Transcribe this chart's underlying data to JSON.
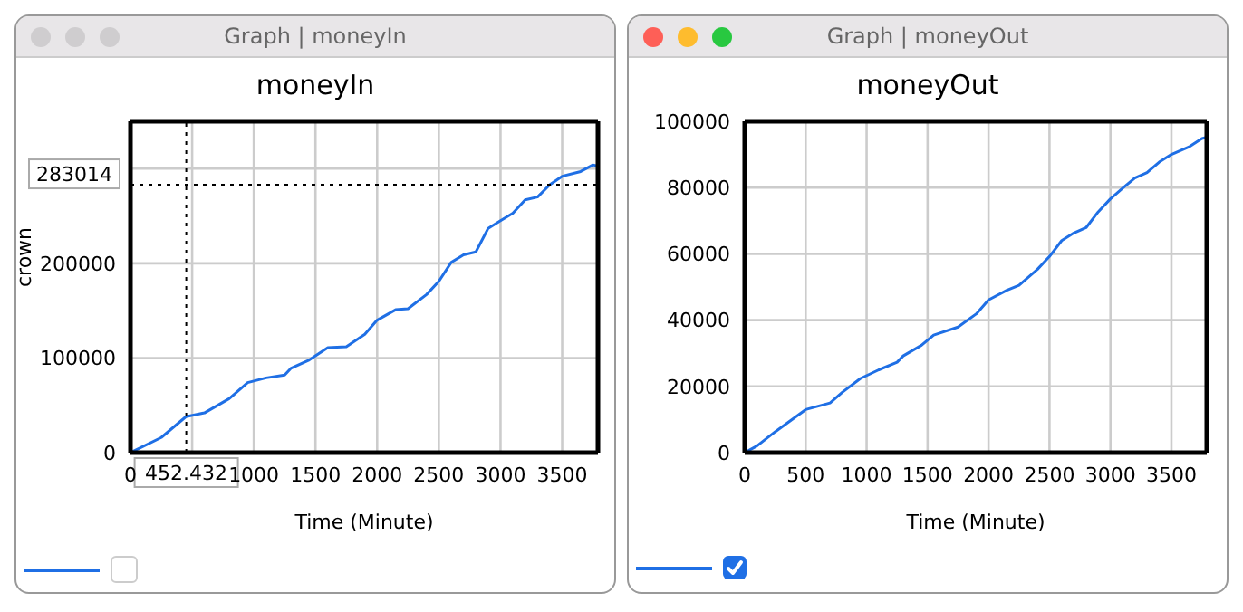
{
  "chart_data": [
    {
      "type": "line",
      "annotations": [
        "Graph | moneyIn"
      ],
      "title": "moneyIn",
      "xlabel": "Time (Minute)",
      "ylabel": "crown",
      "color": "#1f6fe5",
      "grid": true,
      "x": [
        0,
        250,
        450,
        600,
        800,
        950,
        1100,
        1250,
        1300,
        1450,
        1600,
        1750,
        1900,
        2000,
        2150,
        2250,
        2400,
        2500,
        2600,
        2700,
        2800,
        2900,
        3000,
        3100,
        3200,
        3300,
        3400,
        3500,
        3650,
        3750,
        3780
      ],
      "values": [
        0,
        16000,
        38000,
        42000,
        57000,
        74000,
        79000,
        82000,
        89000,
        98000,
        111000,
        112000,
        125000,
        140000,
        151000,
        152000,
        167000,
        181000,
        201000,
        209000,
        212000,
        237000,
        245000,
        253000,
        267000,
        270000,
        283000,
        292000,
        297000,
        304000,
        303000
      ],
      "xlim": [
        0,
        3790
      ],
      "xticks": [
        0,
        {
          "value": 500,
          "label": null
        },
        1000,
        1500,
        2000,
        2500,
        3000,
        3500
      ],
      "ylim": [
        0,
        350000
      ],
      "yticks": [
        0,
        100000,
        200000,
        {
          "value": 300000,
          "label": null
        }
      ],
      "ref_lines": [
        {
          "axis": "x",
          "value": 452.432,
          "label": "452.432",
          "line_style": "dotted",
          "color": "#000000"
        },
        {
          "axis": "y",
          "value": 283014,
          "label": "283014",
          "line_style": "dotted",
          "color": "#000000"
        }
      ]
    },
    {
      "type": "line",
      "annotations": [
        "Graph | moneyOut"
      ],
      "title": "moneyOut",
      "xlabel": "Time (Minute)",
      "color": "#1f6fe5",
      "grid": true,
      "x": [
        0,
        100,
        250,
        400,
        500,
        700,
        800,
        950,
        1100,
        1250,
        1300,
        1450,
        1550,
        1750,
        1900,
        2000,
        2150,
        2250,
        2400,
        2500,
        2600,
        2700,
        2800,
        2900,
        3000,
        3100,
        3200,
        3300,
        3400,
        3500,
        3650,
        3750,
        3780
      ],
      "values": [
        0,
        2000,
        6300,
        10300,
        13000,
        15000,
        18200,
        22400,
        25000,
        27300,
        29200,
        32400,
        35500,
        37900,
        41900,
        46100,
        49000,
        50500,
        55300,
        59200,
        64000,
        66300,
        67900,
        72700,
        76600,
        79800,
        82900,
        84500,
        87700,
        90000,
        92400,
        94800,
        95100
      ],
      "xlim": [
        0,
        3790
      ],
      "xticks": [
        0,
        500,
        1000,
        1500,
        2000,
        2500,
        3000,
        3500
      ],
      "ylim": [
        0,
        100000
      ],
      "yticks": [
        0,
        20000,
        40000,
        60000,
        80000,
        100000
      ]
    }
  ]
}
